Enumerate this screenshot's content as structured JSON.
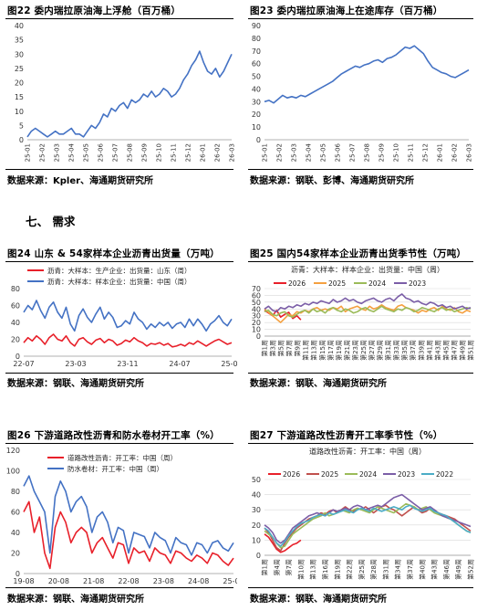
{
  "section": {
    "label": "七、  需求"
  },
  "charts": [
    {
      "id": "c22",
      "title": "图22  委内瑞拉原油海上浮舱（百万桶）",
      "source": "数据来源：Kpler、海通期货研究所",
      "chart_data": {
        "type": "line",
        "title": "委内瑞拉原油海上浮舱（百万桶）",
        "ylim": [
          0,
          40
        ],
        "yticks": [
          0,
          5,
          10,
          15,
          20,
          25,
          30,
          35,
          40
        ],
        "xlabels": [
          "25-01",
          "25-02",
          "25-03",
          "25-04",
          "25-05",
          "25-06",
          "25-07",
          "25-08",
          "25-09",
          "25-10",
          "25-11",
          "25-12",
          "26-01",
          "26-02",
          "26-03"
        ],
        "legend": [],
        "series": [
          {
            "name": "",
            "color": "#4472C4",
            "values": [
              1,
              3,
              4,
              3,
              2,
              1,
              2,
              3,
              2,
              2,
              3,
              4,
              2,
              2,
              1,
              3,
              5,
              4,
              6,
              9,
              8,
              11,
              10,
              12,
              13,
              11,
              14,
              13,
              14,
              16,
              15,
              17,
              15,
              16,
              18,
              17,
              15,
              16,
              18,
              21,
              23,
              26,
              28,
              31,
              27,
              24,
              23,
              25,
              22,
              24,
              27,
              30
            ]
          }
        ]
      }
    },
    {
      "id": "c23",
      "title": "图23  委内瑞拉原油海上在途库存（百万桶）",
      "source": "数据来源：钢联、彭博、海通期货研究所",
      "chart_data": {
        "type": "line",
        "title": "委内瑞拉原油海上在途库存（百万桶）",
        "ylim": [
          0,
          90
        ],
        "yticks": [
          0,
          10,
          20,
          30,
          40,
          50,
          60,
          70,
          80,
          90
        ],
        "xlabels": [
          "25-01",
          "25-02",
          "25-03",
          "25-04",
          "25-05",
          "25-06",
          "25-07",
          "25-08",
          "25-09",
          "25-10",
          "25-11",
          "25-12",
          "26-01",
          "26-02",
          "26-03"
        ],
        "legend": [],
        "series": [
          {
            "name": "",
            "color": "#4472C4",
            "values": [
              30,
              31,
              29,
              32,
              35,
              33,
              34,
              33,
              35,
              34,
              36,
              38,
              40,
              42,
              44,
              46,
              49,
              52,
              54,
              56,
              58,
              57,
              59,
              60,
              62,
              63,
              61,
              64,
              65,
              67,
              70,
              73,
              72,
              74,
              71,
              68,
              62,
              57,
              55,
              53,
              52,
              50,
              49,
              51,
              53,
              55
            ]
          }
        ]
      }
    },
    {
      "id": "c24",
      "title": "图24  山东 & 54家样本企业沥青出货量（万吨）",
      "source": "数据来源：钢联、海通期货研究所",
      "chart_data": {
        "type": "line",
        "title": "山东 & 54家样本企业沥青出货量（万吨）",
        "ylim": [
          0,
          80
        ],
        "yticks": [
          0,
          20,
          40,
          60,
          80
        ],
        "xlabels": [
          "22-07",
          "23-03",
          "23-11",
          "24-07",
          "25-03"
        ],
        "legend": [
          "沥青：大样本：生产企业：出货量：山东（周）",
          "沥青：大样本：样本企业：出货量：中国（周）"
        ],
        "series": [
          {
            "name": "沥青：大样本：生产企业：出货量：山东（周）",
            "color": "#E8202A",
            "values": [
              16,
              22,
              18,
              24,
              20,
              14,
              22,
              26,
              20,
              18,
              24,
              16,
              12,
              20,
              22,
              17,
              14,
              19,
              21,
              16,
              20,
              18,
              13,
              15,
              19,
              17,
              22,
              18,
              16,
              12,
              15,
              14,
              16,
              13,
              15,
              11,
              12,
              14,
              12,
              16,
              14,
              18,
              15,
              12,
              15,
              18,
              20,
              17,
              14,
              16
            ]
          },
          {
            "name": "沥青：大样本：样本企业：出货量：中国（周）",
            "color": "#4472C4",
            "values": [
              52,
              60,
              55,
              66,
              54,
              45,
              58,
              64,
              52,
              45,
              58,
              38,
              30,
              48,
              56,
              46,
              40,
              50,
              58,
              44,
              52,
              46,
              34,
              36,
              42,
              38,
              52,
              44,
              40,
              32,
              38,
              34,
              40,
              36,
              40,
              33,
              38,
              40,
              34,
              44,
              36,
              44,
              38,
              30,
              38,
              42,
              48,
              40,
              36,
              44
            ]
          }
        ]
      }
    },
    {
      "id": "c25",
      "title": "图25  国内54家样本企业沥青出货季节性（万吨）",
      "source": "数据来源：钢联、海通期货研究所",
      "chart_data": {
        "type": "line",
        "title": "国内54家样本企业沥青出货季节性（万吨）",
        "ylim": [
          0,
          70
        ],
        "yticks": [
          0,
          10,
          20,
          30,
          40,
          50,
          60,
          70
        ],
        "xlabels": [
          "第1周",
          "第3周",
          "第5周",
          "第7周",
          "第9周",
          "第11周",
          "第13周",
          "第15周",
          "第17周",
          "第19周",
          "第21周",
          "第23周",
          "第25周",
          "第27周",
          "第29周",
          "第31周",
          "第33周",
          "第35周",
          "第37周",
          "第39周",
          "第41周",
          "第43周",
          "第45周",
          "第47周",
          "第49周",
          "第51周"
        ],
        "legend": [
          "2026",
          "2025",
          "2024",
          "2023"
        ],
        "series": [
          {
            "name": "2026",
            "color": "#E8202A",
            "values": [
              38,
              34,
              30,
              38,
              28,
              32,
              35,
              26,
              30,
              24
            ]
          },
          {
            "name": "2025",
            "color": "#F4A040",
            "values": [
              40,
              35,
              30,
              25,
              20,
              26,
              32,
              30,
              36,
              34,
              38,
              36,
              40,
              42,
              38,
              40,
              38,
              42,
              40,
              44,
              36,
              40,
              42,
              44,
              40,
              38,
              44,
              40,
              42,
              46,
              42,
              40,
              38,
              44,
              46,
              42,
              40,
              38,
              34,
              38,
              36,
              40,
              42,
              38,
              44,
              40,
              38,
              42,
              36,
              34,
              38,
              36
            ]
          },
          {
            "name": "2024",
            "color": "#9BBB59",
            "values": [
              36,
              38,
              32,
              30,
              34,
              36,
              30,
              28,
              32,
              36,
              38,
              34,
              40,
              36,
              38,
              34,
              40,
              42,
              38,
              36,
              40,
              38,
              34,
              36,
              40,
              42,
              38,
              36,
              40,
              44,
              40,
              38,
              36,
              40,
              38,
              42,
              40,
              36,
              38,
              42,
              40,
              38,
              36,
              40,
              42,
              38,
              40,
              36,
              38,
              40,
              42,
              40
            ]
          },
          {
            "name": "2023",
            "color": "#7B5EA7",
            "values": [
              40,
              44,
              38,
              36,
              42,
              40,
              44,
              42,
              46,
              44,
              48,
              46,
              50,
              48,
              52,
              50,
              48,
              54,
              50,
              52,
              56,
              52,
              54,
              50,
              48,
              52,
              54,
              56,
              52,
              50,
              54,
              56,
              52,
              58,
              62,
              56,
              54,
              50,
              52,
              48,
              46,
              50,
              48,
              44,
              46,
              42,
              44,
              40,
              42,
              44,
              40,
              42
            ]
          }
        ]
      }
    },
    {
      "id": "c26",
      "title": "图26  下游道路改性沥青和防水卷材开工率（%）",
      "source": "数据来源：钢联、海通期货研究所",
      "chart_data": {
        "type": "line",
        "title": "下游道路改性沥青和防水卷材开工率（%）",
        "ylim": [
          0,
          120
        ],
        "yticks": [
          0,
          20,
          40,
          60,
          80,
          100,
          120
        ],
        "xlabels": [
          "19-08",
          "20-08",
          "21-08",
          "22-08",
          "23-08",
          "24-08",
          "25-08"
        ],
        "legend": [
          "道路改性沥青：开工率：中国（周）",
          "防水卷材：开工率：中国（周）"
        ],
        "series": [
          {
            "name": "道路改性沥青：开工率：中国（周）",
            "color": "#E8202A",
            "values": [
              60,
              70,
              40,
              55,
              20,
              5,
              45,
              60,
              50,
              30,
              40,
              45,
              40,
              20,
              30,
              35,
              25,
              15,
              30,
              28,
              10,
              25,
              20,
              22,
              12,
              25,
              20,
              18,
              10,
              22,
              20,
              15,
              12,
              18,
              15,
              10,
              20,
              18,
              12,
              8,
              15
            ]
          },
          {
            "name": "防水卷材：开工率：中国（周）",
            "color": "#4472C4",
            "values": [
              85,
              95,
              80,
              70,
              60,
              20,
              75,
              90,
              80,
              60,
              70,
              75,
              65,
              40,
              55,
              60,
              50,
              30,
              45,
              42,
              20,
              40,
              38,
              36,
              25,
              40,
              35,
              32,
              20,
              35,
              30,
              28,
              18,
              30,
              28,
              20,
              30,
              32,
              25,
              22,
              30
            ]
          }
        ]
      }
    },
    {
      "id": "c27",
      "title": "图27  下游道路改性沥青开工率季节性（%）",
      "source": "数据来源：钢联、海通期货研究所",
      "chart_data": {
        "type": "line",
        "title": "道路改性沥青：开工率：中国（周）",
        "ylim": [
          0,
          50
        ],
        "yticks": [
          0,
          10,
          20,
          30,
          40,
          50
        ],
        "xlabels": [
          "第1周",
          "第4周",
          "第7周",
          "第10周",
          "第13周",
          "第16周",
          "第19周",
          "第22周",
          "第25周",
          "第28周",
          "第31周",
          "第34周",
          "第37周",
          "第40周",
          "第43周",
          "第46周",
          "第49周",
          "第52周"
        ],
        "legend": [
          "2026",
          "2025",
          "2024",
          "2023",
          "2022"
        ],
        "series": [
          {
            "name": "2026",
            "color": "#E8202A",
            "values": [
              14,
              12,
              8,
              4,
              2,
              3,
              5,
              7,
              8,
              10
            ]
          },
          {
            "name": "2025",
            "color": "#C0504D",
            "values": [
              18,
              15,
              10,
              5,
              3,
              8,
              12,
              15,
              18,
              20,
              22,
              24,
              25,
              26,
              28,
              27,
              29,
              30,
              28,
              30,
              32,
              30,
              29,
              31,
              30,
              32,
              30,
              28,
              30,
              32,
              33,
              31,
              30,
              28,
              26,
              28,
              30,
              32,
              30,
              28,
              29,
              31,
              30,
              28,
              27,
              26,
              25,
              24,
              22,
              20,
              18,
              16
            ]
          },
          {
            "name": "2024",
            "color": "#9BBB59",
            "values": [
              16,
              14,
              12,
              8,
              5,
              6,
              10,
              14,
              16,
              18,
              20,
              22,
              24,
              25,
              26,
              28,
              26,
              27,
              28,
              30,
              29,
              28,
              30,
              31,
              30,
              29,
              28,
              30,
              32,
              31,
              30,
              29,
              28,
              30,
              32,
              34,
              33,
              32,
              30,
              31,
              32,
              30,
              28,
              27,
              26,
              25,
              24,
              22,
              20,
              18,
              16,
              15
            ]
          },
          {
            "name": "2023",
            "color": "#7B5EA7",
            "values": [
              20,
              18,
              15,
              10,
              8,
              10,
              14,
              18,
              20,
              22,
              24,
              26,
              27,
              28,
              27,
              26,
              28,
              30,
              29,
              30,
              31,
              30,
              32,
              33,
              32,
              30,
              31,
              32,
              33,
              32,
              34,
              36,
              38,
              39,
              40,
              38,
              36,
              34,
              32,
              30,
              31,
              32,
              30,
              28,
              26,
              25,
              24,
              23,
              22,
              21,
              20,
              19
            ]
          },
          {
            "name": "2022",
            "color": "#4BACC6",
            "values": [
              18,
              16,
              12,
              8,
              6,
              9,
              13,
              16,
              19,
              21,
              22,
              23,
              25,
              26,
              27,
              26,
              28,
              27,
              28,
              29,
              30,
              29,
              28,
              30,
              31,
              30,
              29,
              31,
              30,
              29,
              30,
              31,
              32,
              31,
              30,
              32,
              33,
              31,
              30,
              29,
              30,
              31,
              29,
              28,
              27,
              26,
              24,
              22,
              20,
              18,
              16,
              15
            ]
          }
        ]
      }
    }
  ]
}
